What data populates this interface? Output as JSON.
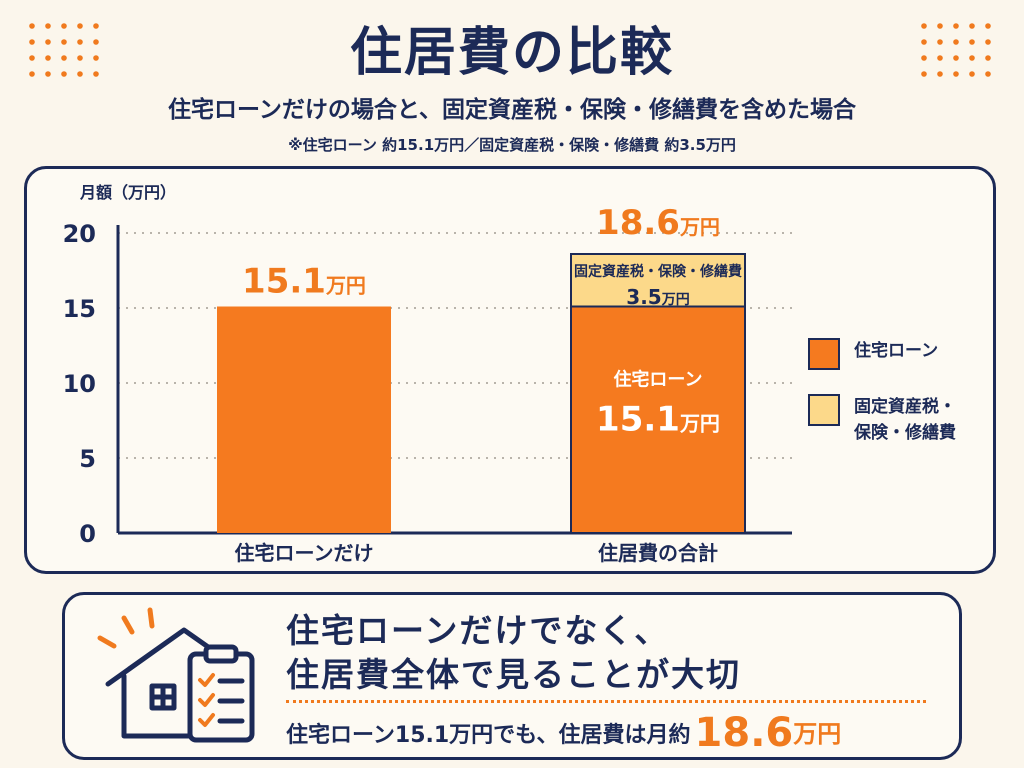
{
  "header": {
    "title": "住居費の比較",
    "subtitle": "住宅ローンだけの場合と、固定資産税・保険・修繕費を含めた場合",
    "note": "※住宅ローン 約15.1万円／固定資産税・保険・修繕費 約3.5万円"
  },
  "colors": {
    "navy": "#1c2a57",
    "loan": "#f57a1f",
    "other": "#fcd98a",
    "accent": "#f07a1e"
  },
  "chart_data": {
    "type": "bar",
    "stacked": true,
    "ylabel": "月額（万円）",
    "ylim": [
      0,
      20
    ],
    "yticks": [
      "0",
      "5",
      "10",
      "15",
      "20"
    ],
    "grid": true,
    "legend_position": "right",
    "categories": [
      "住宅ローンだけ",
      "住居費の合計"
    ],
    "series": [
      {
        "name": "住宅ローン",
        "values": [
          15.1,
          15.1
        ],
        "color": "#f57a1f"
      },
      {
        "name": "固定資産税・保険・修繕費",
        "values": [
          0,
          3.5
        ],
        "color": "#fcd98a"
      }
    ],
    "totals": [
      "15.1",
      "18.6"
    ],
    "unit": "万円",
    "inner_labels": {
      "loan_name": "住宅ローン",
      "loan_value": "15.1",
      "other_name": "固定資産税・保険・修繕費",
      "other_value": "3.5"
    },
    "legend": [
      "住宅ローン",
      "固定資産税・\n保険・修繕費"
    ]
  },
  "message": {
    "line1": "住宅ローンだけでなく、",
    "line2": "住居費全体で見ることが大切",
    "line3_prefix": "住宅ローン15.1万円でも、住居費は月約",
    "line3_value": "18.6",
    "line3_unit": "万円"
  },
  "icons": [
    "house-icon",
    "checklist-icon"
  ]
}
